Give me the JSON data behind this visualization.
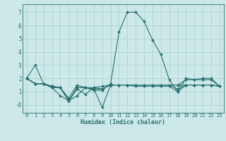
{
  "xlabel": "Humidex (Indice chaleur)",
  "background_color": "#cce8e8",
  "grid_color": "#aacfcf",
  "line_color": "#2a7070",
  "xlim": [
    -0.5,
    23.5
  ],
  "ylim": [
    -0.6,
    7.6
  ],
  "yticks": [
    0,
    1,
    2,
    3,
    4,
    5,
    6,
    7
  ],
  "ytick_labels": [
    "-0",
    "1",
    "2",
    "3",
    "4",
    "5",
    "6",
    "7"
  ],
  "xticks": [
    0,
    1,
    2,
    3,
    4,
    5,
    6,
    7,
    8,
    9,
    10,
    11,
    12,
    13,
    14,
    15,
    16,
    17,
    18,
    19,
    20,
    21,
    22,
    23
  ],
  "line1_x": [
    0,
    1,
    2,
    3,
    4,
    5,
    6,
    7,
    8,
    9,
    10,
    11,
    12,
    13,
    14,
    15,
    16,
    17,
    18,
    19,
    20,
    21,
    22,
    23
  ],
  "line1_y": [
    2.0,
    3.0,
    1.6,
    1.3,
    0.7,
    0.3,
    0.7,
    1.3,
    1.1,
    1.1,
    1.6,
    5.5,
    7.0,
    7.0,
    6.3,
    4.9,
    3.8,
    1.9,
    1.0,
    2.0,
    1.9,
    2.0,
    2.0,
    1.4
  ],
  "line2_x": [
    0,
    1,
    2,
    3,
    4,
    5,
    6,
    7,
    8,
    9,
    10,
    11,
    12,
    13,
    14,
    15,
    16,
    17,
    18,
    19,
    20,
    21,
    22,
    23
  ],
  "line2_y": [
    2.0,
    1.6,
    1.6,
    1.4,
    1.3,
    0.5,
    1.5,
    1.3,
    1.2,
    -0.2,
    1.5,
    1.5,
    1.5,
    1.5,
    1.5,
    1.5,
    1.5,
    1.5,
    1.5,
    1.5,
    1.5,
    1.5,
    1.5,
    1.4
  ],
  "line3_x": [
    0,
    1,
    2,
    3,
    4,
    5,
    6,
    7,
    8,
    9,
    10,
    11,
    12,
    13,
    14,
    15,
    16,
    17,
    18,
    19,
    20,
    21,
    22,
    23
  ],
  "line3_y": [
    2.0,
    1.6,
    1.6,
    1.3,
    1.3,
    0.3,
    1.2,
    0.8,
    1.3,
    1.4,
    1.5,
    1.5,
    1.5,
    1.4,
    1.4,
    1.4,
    1.4,
    1.4,
    1.0,
    1.5,
    1.5,
    1.5,
    1.5,
    1.4
  ],
  "line4_x": [
    0,
    1,
    2,
    3,
    4,
    5,
    6,
    7,
    8,
    9,
    10,
    11,
    12,
    13,
    14,
    15,
    16,
    17,
    18,
    19,
    20,
    21,
    22,
    23
  ],
  "line4_y": [
    2.0,
    1.6,
    1.6,
    1.4,
    1.3,
    0.3,
    1.3,
    1.3,
    1.2,
    1.2,
    1.5,
    1.5,
    1.5,
    1.5,
    1.5,
    1.5,
    1.5,
    1.5,
    1.5,
    1.9,
    1.9,
    1.9,
    1.9,
    1.4
  ],
  "line5_x": [
    0,
    1,
    2,
    3,
    4,
    5,
    6,
    7,
    8,
    9,
    10,
    11,
    12,
    13,
    14,
    15,
    16,
    17,
    18,
    19,
    20,
    21,
    22,
    23
  ],
  "line5_y": [
    2.0,
    1.6,
    1.6,
    1.4,
    1.3,
    0.3,
    1.3,
    1.3,
    1.3,
    1.2,
    1.5,
    1.5,
    1.5,
    1.5,
    1.5,
    1.5,
    1.5,
    1.5,
    1.2,
    1.5,
    1.5,
    1.5,
    1.5,
    1.4
  ],
  "lw": 0.8,
  "ms": 2.0,
  "xlabel_fontsize": 6.0,
  "tick_fontsize": 5.0
}
